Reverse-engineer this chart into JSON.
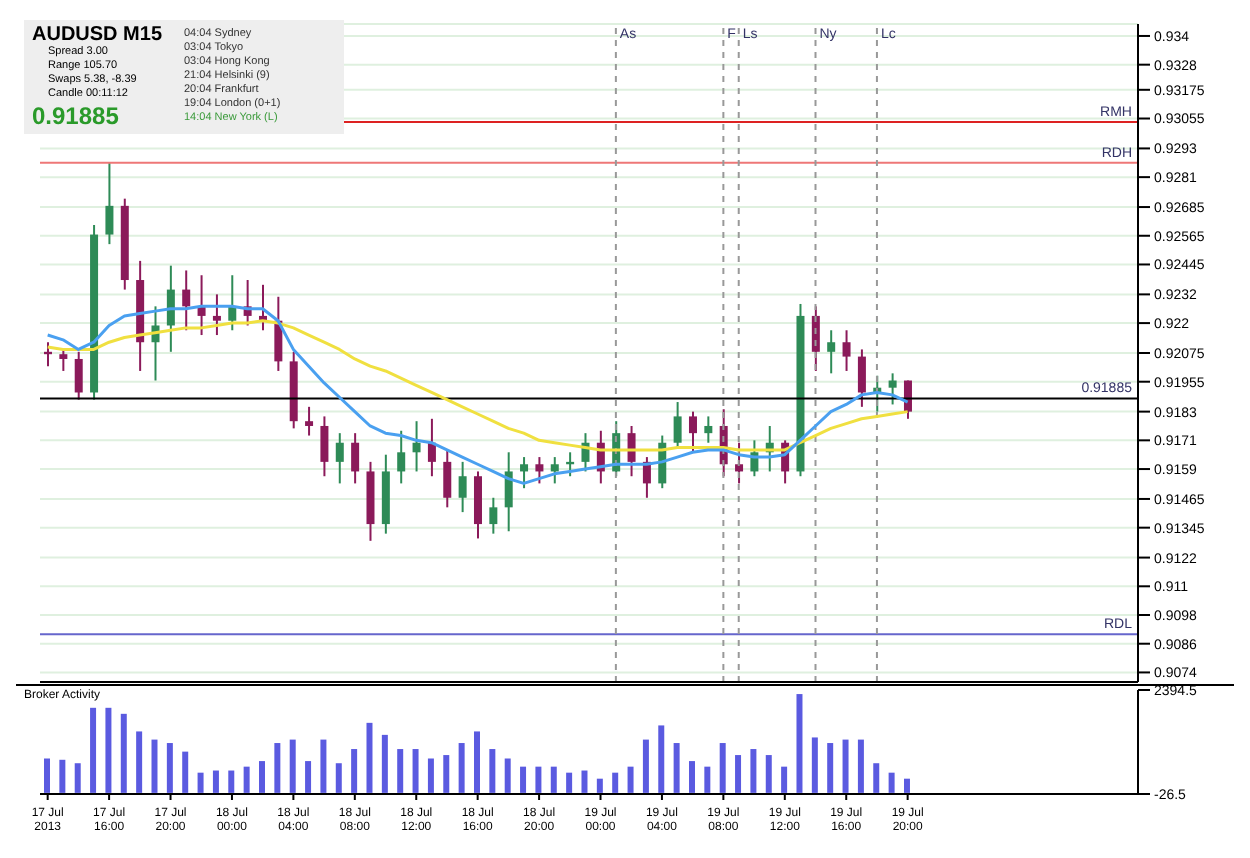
{
  "chart_data": [
    {
      "type": "candlestick",
      "title": "AUDUSD  M15",
      "x": [
        "2013-07-17T12:00",
        "2013-07-17T13:00",
        "2013-07-17T14:00",
        "2013-07-17T15:00",
        "2013-07-17T16:00",
        "2013-07-17T17:00",
        "2013-07-17T18:00",
        "2013-07-17T19:00",
        "2013-07-17T20:00",
        "2013-07-17T21:00",
        "2013-07-17T22:00",
        "2013-07-17T23:00",
        "2013-07-18T00:00",
        "2013-07-18T01:00",
        "2013-07-18T02:00",
        "2013-07-18T03:00",
        "2013-07-18T04:00",
        "2013-07-18T05:00",
        "2013-07-18T06:00",
        "2013-07-18T07:00",
        "2013-07-18T08:00",
        "2013-07-18T09:00",
        "2013-07-18T10:00",
        "2013-07-18T11:00",
        "2013-07-18T12:00",
        "2013-07-18T13:00",
        "2013-07-18T14:00",
        "2013-07-18T15:00",
        "2013-07-18T16:00",
        "2013-07-18T17:00",
        "2013-07-18T18:00",
        "2013-07-18T19:00",
        "2013-07-18T20:00",
        "2013-07-18T21:00",
        "2013-07-18T22:00",
        "2013-07-18T23:00",
        "2013-07-19T00:00",
        "2013-07-19T01:00",
        "2013-07-19T02:00",
        "2013-07-19T03:00",
        "2013-07-19T04:00",
        "2013-07-19T05:00",
        "2013-07-19T06:00",
        "2013-07-19T07:00",
        "2013-07-19T08:00",
        "2013-07-19T09:00",
        "2013-07-19T10:00",
        "2013-07-19T11:00",
        "2013-07-19T12:00",
        "2013-07-19T13:00",
        "2013-07-19T14:00",
        "2013-07-19T15:00",
        "2013-07-19T16:00",
        "2013-07-19T17:00",
        "2013-07-19T18:00",
        "2013-07-19T19:00",
        "2013-07-19T20:00"
      ],
      "ohlc": [
        [
          0.9208,
          0.9212,
          0.9202,
          0.9207
        ],
        [
          0.9207,
          0.9209,
          0.92,
          0.9205
        ],
        [
          0.9205,
          0.9208,
          0.9188,
          0.9191
        ],
        [
          0.9191,
          0.9261,
          0.9188,
          0.9257
        ],
        [
          0.9257,
          0.9287,
          0.9253,
          0.9269
        ],
        [
          0.9269,
          0.9272,
          0.9234,
          0.9238
        ],
        [
          0.9238,
          0.9246,
          0.92,
          0.9212
        ],
        [
          0.9212,
          0.9227,
          0.9196,
          0.9219
        ],
        [
          0.9219,
          0.9244,
          0.9208,
          0.9234
        ],
        [
          0.9234,
          0.9242,
          0.9217,
          0.9227
        ],
        [
          0.9227,
          0.924,
          0.9215,
          0.9223
        ],
        [
          0.9223,
          0.9232,
          0.9215,
          0.9221
        ],
        [
          0.9221,
          0.924,
          0.9217,
          0.9227
        ],
        [
          0.9227,
          0.9238,
          0.9219,
          0.9223
        ],
        [
          0.9223,
          0.9236,
          0.9217,
          0.9221
        ],
        [
          0.9221,
          0.9231,
          0.92,
          0.9204
        ],
        [
          0.9204,
          0.9208,
          0.9176,
          0.9179
        ],
        [
          0.9179,
          0.9185,
          0.9173,
          0.9177
        ],
        [
          0.9177,
          0.9181,
          0.9156,
          0.9162
        ],
        [
          0.9162,
          0.9174,
          0.9153,
          0.917
        ],
        [
          0.917,
          0.9174,
          0.9153,
          0.9158
        ],
        [
          0.9158,
          0.9162,
          0.9129,
          0.9136
        ],
        [
          0.9136,
          0.9165,
          0.9132,
          0.9158
        ],
        [
          0.9158,
          0.9175,
          0.9153,
          0.9166
        ],
        [
          0.9166,
          0.9179,
          0.9158,
          0.917
        ],
        [
          0.917,
          0.918,
          0.9156,
          0.9162
        ],
        [
          0.9162,
          0.9167,
          0.9143,
          0.9147
        ],
        [
          0.9147,
          0.9162,
          0.9141,
          0.9156
        ],
        [
          0.9156,
          0.9158,
          0.913,
          0.9136
        ],
        [
          0.9136,
          0.9147,
          0.9132,
          0.9143
        ],
        [
          0.9143,
          0.9166,
          0.9133,
          0.9158
        ],
        [
          0.9158,
          0.9164,
          0.9151,
          0.9161
        ],
        [
          0.9161,
          0.9164,
          0.9153,
          0.9158
        ],
        [
          0.9158,
          0.9164,
          0.9153,
          0.9161
        ],
        [
          0.9161,
          0.9166,
          0.9156,
          0.9162
        ],
        [
          0.9162,
          0.9174,
          0.9158,
          0.917
        ],
        [
          0.917,
          0.9175,
          0.9153,
          0.9158
        ],
        [
          0.9158,
          0.9179,
          0.9156,
          0.9174
        ],
        [
          0.9174,
          0.9177,
          0.9156,
          0.9162
        ],
        [
          0.9162,
          0.9164,
          0.9147,
          0.9153
        ],
        [
          0.9153,
          0.9173,
          0.9151,
          0.917
        ],
        [
          0.917,
          0.9187,
          0.9168,
          0.9181
        ],
        [
          0.9181,
          0.9183,
          0.9166,
          0.9174
        ],
        [
          0.9174,
          0.9181,
          0.917,
          0.9177
        ],
        [
          0.9177,
          0.9184,
          0.9156,
          0.9161
        ],
        [
          0.9161,
          0.917,
          0.9153,
          0.9158
        ],
        [
          0.9158,
          0.9171,
          0.9156,
          0.9166
        ],
        [
          0.9166,
          0.9177,
          0.9158,
          0.917
        ],
        [
          0.917,
          0.9171,
          0.9153,
          0.9158
        ],
        [
          0.9158,
          0.9228,
          0.9156,
          0.9223
        ],
        [
          0.9223,
          0.9227,
          0.92,
          0.9208
        ],
        [
          0.9208,
          0.9217,
          0.9199,
          0.9212
        ],
        [
          0.9212,
          0.9217,
          0.92,
          0.9206
        ],
        [
          0.9206,
          0.9209,
          0.9185,
          0.9191
        ],
        [
          0.9191,
          0.9198,
          0.9183,
          0.9193
        ],
        [
          0.9193,
          0.9199,
          0.9186,
          0.9196
        ],
        [
          0.9196,
          0.9196,
          0.918,
          0.9183
        ]
      ],
      "series": [
        {
          "type": "line",
          "color": "#f0e040",
          "values": [
            0.921,
            0.9209,
            0.9209,
            0.9209,
            0.9212,
            0.9214,
            0.9215,
            0.9216,
            0.9217,
            0.9218,
            0.9218,
            0.9219,
            0.922,
            0.922,
            0.9221,
            0.922,
            0.9218,
            0.9215,
            0.9212,
            0.9209,
            0.9205,
            0.9202,
            0.92,
            0.9197,
            0.9194,
            0.9191,
            0.9188,
            0.9185,
            0.9182,
            0.9179,
            0.9176,
            0.9174,
            0.9171,
            0.917,
            0.9169,
            0.9168,
            0.9167,
            0.9167,
            0.9167,
            0.9167,
            0.9167,
            0.9168,
            0.9168,
            0.9168,
            0.9168,
            0.9167,
            0.9167,
            0.9167,
            0.9167,
            0.917,
            0.9173,
            0.9176,
            0.9178,
            0.918,
            0.9181,
            0.9182,
            0.9183
          ]
        },
        {
          "type": "line",
          "color": "#4aa0f0",
          "values": [
            0.9215,
            0.9213,
            0.9209,
            0.9212,
            0.9219,
            0.9223,
            0.9224,
            0.9225,
            0.9226,
            0.9226,
            0.9227,
            0.9227,
            0.9227,
            0.9226,
            0.9226,
            0.9221,
            0.9209,
            0.9202,
            0.9195,
            0.9189,
            0.9183,
            0.9177,
            0.9174,
            0.9173,
            0.9171,
            0.917,
            0.9167,
            0.9164,
            0.9161,
            0.9158,
            0.9155,
            0.9153,
            0.9155,
            0.9157,
            0.9158,
            0.9159,
            0.916,
            0.9161,
            0.9161,
            0.9161,
            0.9162,
            0.9164,
            0.9166,
            0.9167,
            0.9167,
            0.9165,
            0.9164,
            0.9164,
            0.9165,
            0.9171,
            0.9177,
            0.9183,
            0.9186,
            0.919,
            0.9191,
            0.919,
            0.9187
          ]
        }
      ],
      "xlim": [
        "2013-07-17T11:30",
        "2013-07-20T11:00"
      ],
      "xticks": [
        {
          "value": "2013-07-17T12:00",
          "label": null
        },
        {
          "value": "2013-07-17T16:00",
          "label": null
        },
        {
          "value": "2013-07-17T20:00",
          "label": null
        },
        {
          "value": "2013-07-18T00:00",
          "label": null
        },
        {
          "value": "2013-07-18T04:00",
          "label": null
        },
        {
          "value": "2013-07-18T08:00",
          "label": null
        },
        {
          "value": "2013-07-18T12:00",
          "label": null
        },
        {
          "value": "2013-07-18T16:00",
          "label": null
        },
        {
          "value": "2013-07-18T20:00",
          "label": null
        },
        {
          "value": "2013-07-19T00:00",
          "label": null
        },
        {
          "value": "2013-07-19T04:00",
          "label": null
        },
        {
          "value": "2013-07-19T08:00",
          "label": null
        },
        {
          "value": "2013-07-19T12:00",
          "label": null
        },
        {
          "value": "2013-07-19T16:00",
          "label": null
        },
        {
          "value": "2013-07-19T20:00",
          "label": null
        }
      ],
      "ylim": [
        0.907,
        0.9345
      ],
      "yticks": [
        0.934,
        0.9328,
        0.93175,
        0.93055,
        0.9293,
        0.9281,
        0.92685,
        0.92565,
        0.92445,
        0.9232,
        0.922,
        0.92075,
        0.91955,
        0.9183,
        0.9171,
        0.9159,
        0.91465,
        0.91345,
        0.9122,
        0.911,
        0.9098,
        0.9086,
        0.9074
      ],
      "tick_labels": "y",
      "grid": "y",
      "ref_lines": [
        {
          "axis": "y",
          "value": 0.9304,
          "label": "RMH",
          "color": "#dd2222"
        },
        {
          "axis": "y",
          "value": 0.9287,
          "label": "RDH",
          "color": "#ee7777"
        },
        {
          "axis": "y",
          "value": 0.909,
          "label": "RDL",
          "color": "#6666cc"
        },
        {
          "axis": "y",
          "value": 0.91885,
          "label": "0.91885",
          "color": "#000000"
        },
        {
          "axis": "x",
          "value": "2013-07-19T01:00",
          "label": "As",
          "color": "#999999",
          "line_style": "dashed"
        },
        {
          "axis": "x",
          "value": "2013-07-19T08:00",
          "label": "F",
          "color": "#999999",
          "line_style": "dashed"
        },
        {
          "axis": "x",
          "value": "2013-07-19T09:00",
          "label": "Ls",
          "color": "#999999",
          "line_style": "dashed"
        },
        {
          "axis": "x",
          "value": "2013-07-19T14:00",
          "label": "Ny",
          "color": "#999999",
          "line_style": "dashed"
        },
        {
          "axis": "x",
          "value": "2013-07-19T18:00",
          "label": "Lc",
          "color": "#999999",
          "line_style": "dashed"
        }
      ],
      "annotations": [
        "Spread  3.00",
        "Range  105.70",
        "Swaps  5.38, -8.39",
        "Candle  00:11:12",
        "0.91885",
        "04:04  Sydney",
        "03:04  Tokyo",
        "03:04  Hong Kong",
        "21:04  Helsinki (9)",
        "20:04  Frankfurt",
        "19:04  London (0+1)",
        "14:04  New York (L)"
      ]
    },
    {
      "type": "bar",
      "title": "Broker Activity",
      "x": [
        "2013-07-17T12:00",
        "2013-07-17T13:00",
        "2013-07-17T14:00",
        "2013-07-17T15:00",
        "2013-07-17T16:00",
        "2013-07-17T17:00",
        "2013-07-17T18:00",
        "2013-07-17T19:00",
        "2013-07-17T20:00",
        "2013-07-17T21:00",
        "2013-07-17T22:00",
        "2013-07-17T23:00",
        "2013-07-18T00:00",
        "2013-07-18T01:00",
        "2013-07-18T02:00",
        "2013-07-18T03:00",
        "2013-07-18T04:00",
        "2013-07-18T05:00",
        "2013-07-18T06:00",
        "2013-07-18T07:00",
        "2013-07-18T08:00",
        "2013-07-18T09:00",
        "2013-07-18T10:00",
        "2013-07-18T11:00",
        "2013-07-18T12:00",
        "2013-07-18T13:00",
        "2013-07-18T14:00",
        "2013-07-18T15:00",
        "2013-07-18T16:00",
        "2013-07-18T17:00",
        "2013-07-18T18:00",
        "2013-07-18T19:00",
        "2013-07-18T20:00",
        "2013-07-18T21:00",
        "2013-07-18T22:00",
        "2013-07-18T23:00",
        "2013-07-19T00:00",
        "2013-07-19T01:00",
        "2013-07-19T02:00",
        "2013-07-19T03:00",
        "2013-07-19T04:00",
        "2013-07-19T05:00",
        "2013-07-19T06:00",
        "2013-07-19T07:00",
        "2013-07-19T08:00",
        "2013-07-19T09:00",
        "2013-07-19T10:00",
        "2013-07-19T11:00",
        "2013-07-19T12:00",
        "2013-07-19T13:00",
        "2013-07-19T14:00",
        "2013-07-19T15:00",
        "2013-07-19T16:00",
        "2013-07-19T17:00",
        "2013-07-19T18:00",
        "2013-07-19T19:00",
        "2013-07-19T20:00"
      ],
      "values": [
        800,
        770,
        690,
        1980,
        1980,
        1840,
        1430,
        1240,
        1160,
        960,
        470,
        520,
        520,
        610,
        740,
        1160,
        1240,
        740,
        1240,
        690,
        1020,
        1630,
        1350,
        1020,
        1020,
        800,
        880,
        1160,
        1430,
        1020,
        800,
        610,
        610,
        610,
        470,
        520,
        330,
        470,
        610,
        1240,
        1570,
        1160,
        740,
        610,
        1160,
        880,
        1020,
        880,
        610,
        2300,
        1290,
        1160,
        1240,
        1240,
        690,
        470,
        330
      ],
      "color": "#5a5ae0",
      "xlim": [
        "2013-07-17T11:30",
        "2013-07-20T11:00"
      ],
      "xticks": [
        {
          "value": "2013-07-17T12:00",
          "label": "17 Jul 2013"
        },
        {
          "value": "2013-07-17T16:00",
          "label": "17 Jul 16:00"
        },
        {
          "value": "2013-07-17T20:00",
          "label": "17 Jul 20:00"
        },
        {
          "value": "2013-07-18T00:00",
          "label": "18 Jul 00:00"
        },
        {
          "value": "2013-07-18T04:00",
          "label": "18 Jul 04:00"
        },
        {
          "value": "2013-07-18T08:00",
          "label": "18 Jul 08:00"
        },
        {
          "value": "2013-07-18T12:00",
          "label": "18 Jul 12:00"
        },
        {
          "value": "2013-07-18T16:00",
          "label": "18 Jul 16:00"
        },
        {
          "value": "2013-07-18T20:00",
          "label": "18 Jul 20:00"
        },
        {
          "value": "2013-07-19T00:00",
          "label": "19 Jul 00:00"
        },
        {
          "value": "2013-07-19T04:00",
          "label": "19 Jul 04:00"
        },
        {
          "value": "2013-07-19T08:00",
          "label": "19 Jul 08:00"
        },
        {
          "value": "2013-07-19T12:00",
          "label": "19 Jul 12:00"
        },
        {
          "value": "2013-07-19T16:00",
          "label": "19 Jul 16:00"
        },
        {
          "value": "2013-07-19T20:00",
          "label": "19 Jul 20:00"
        }
      ],
      "ylim": [
        -26.5,
        2394.5
      ],
      "yticks": [
        2394.5,
        -26.5
      ]
    }
  ]
}
